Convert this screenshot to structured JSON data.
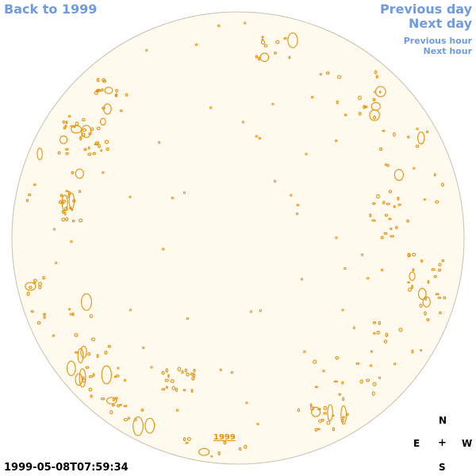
{
  "nav": {
    "back": "Back to 1999",
    "previous_day": "Previous day",
    "next_day": "Next day",
    "previous_hour": "Previous hour",
    "next_hour": "Next hour"
  },
  "sun": {
    "disk_color": "#fffaed",
    "limb_color": "#c8c0b0",
    "contour_color": "#e8900a",
    "year_link": "1999"
  },
  "compass": {
    "n": "N",
    "e": "E",
    "center": "+",
    "w": "W",
    "s": "S"
  },
  "timestamp": "1999-05-08T07:59:34"
}
